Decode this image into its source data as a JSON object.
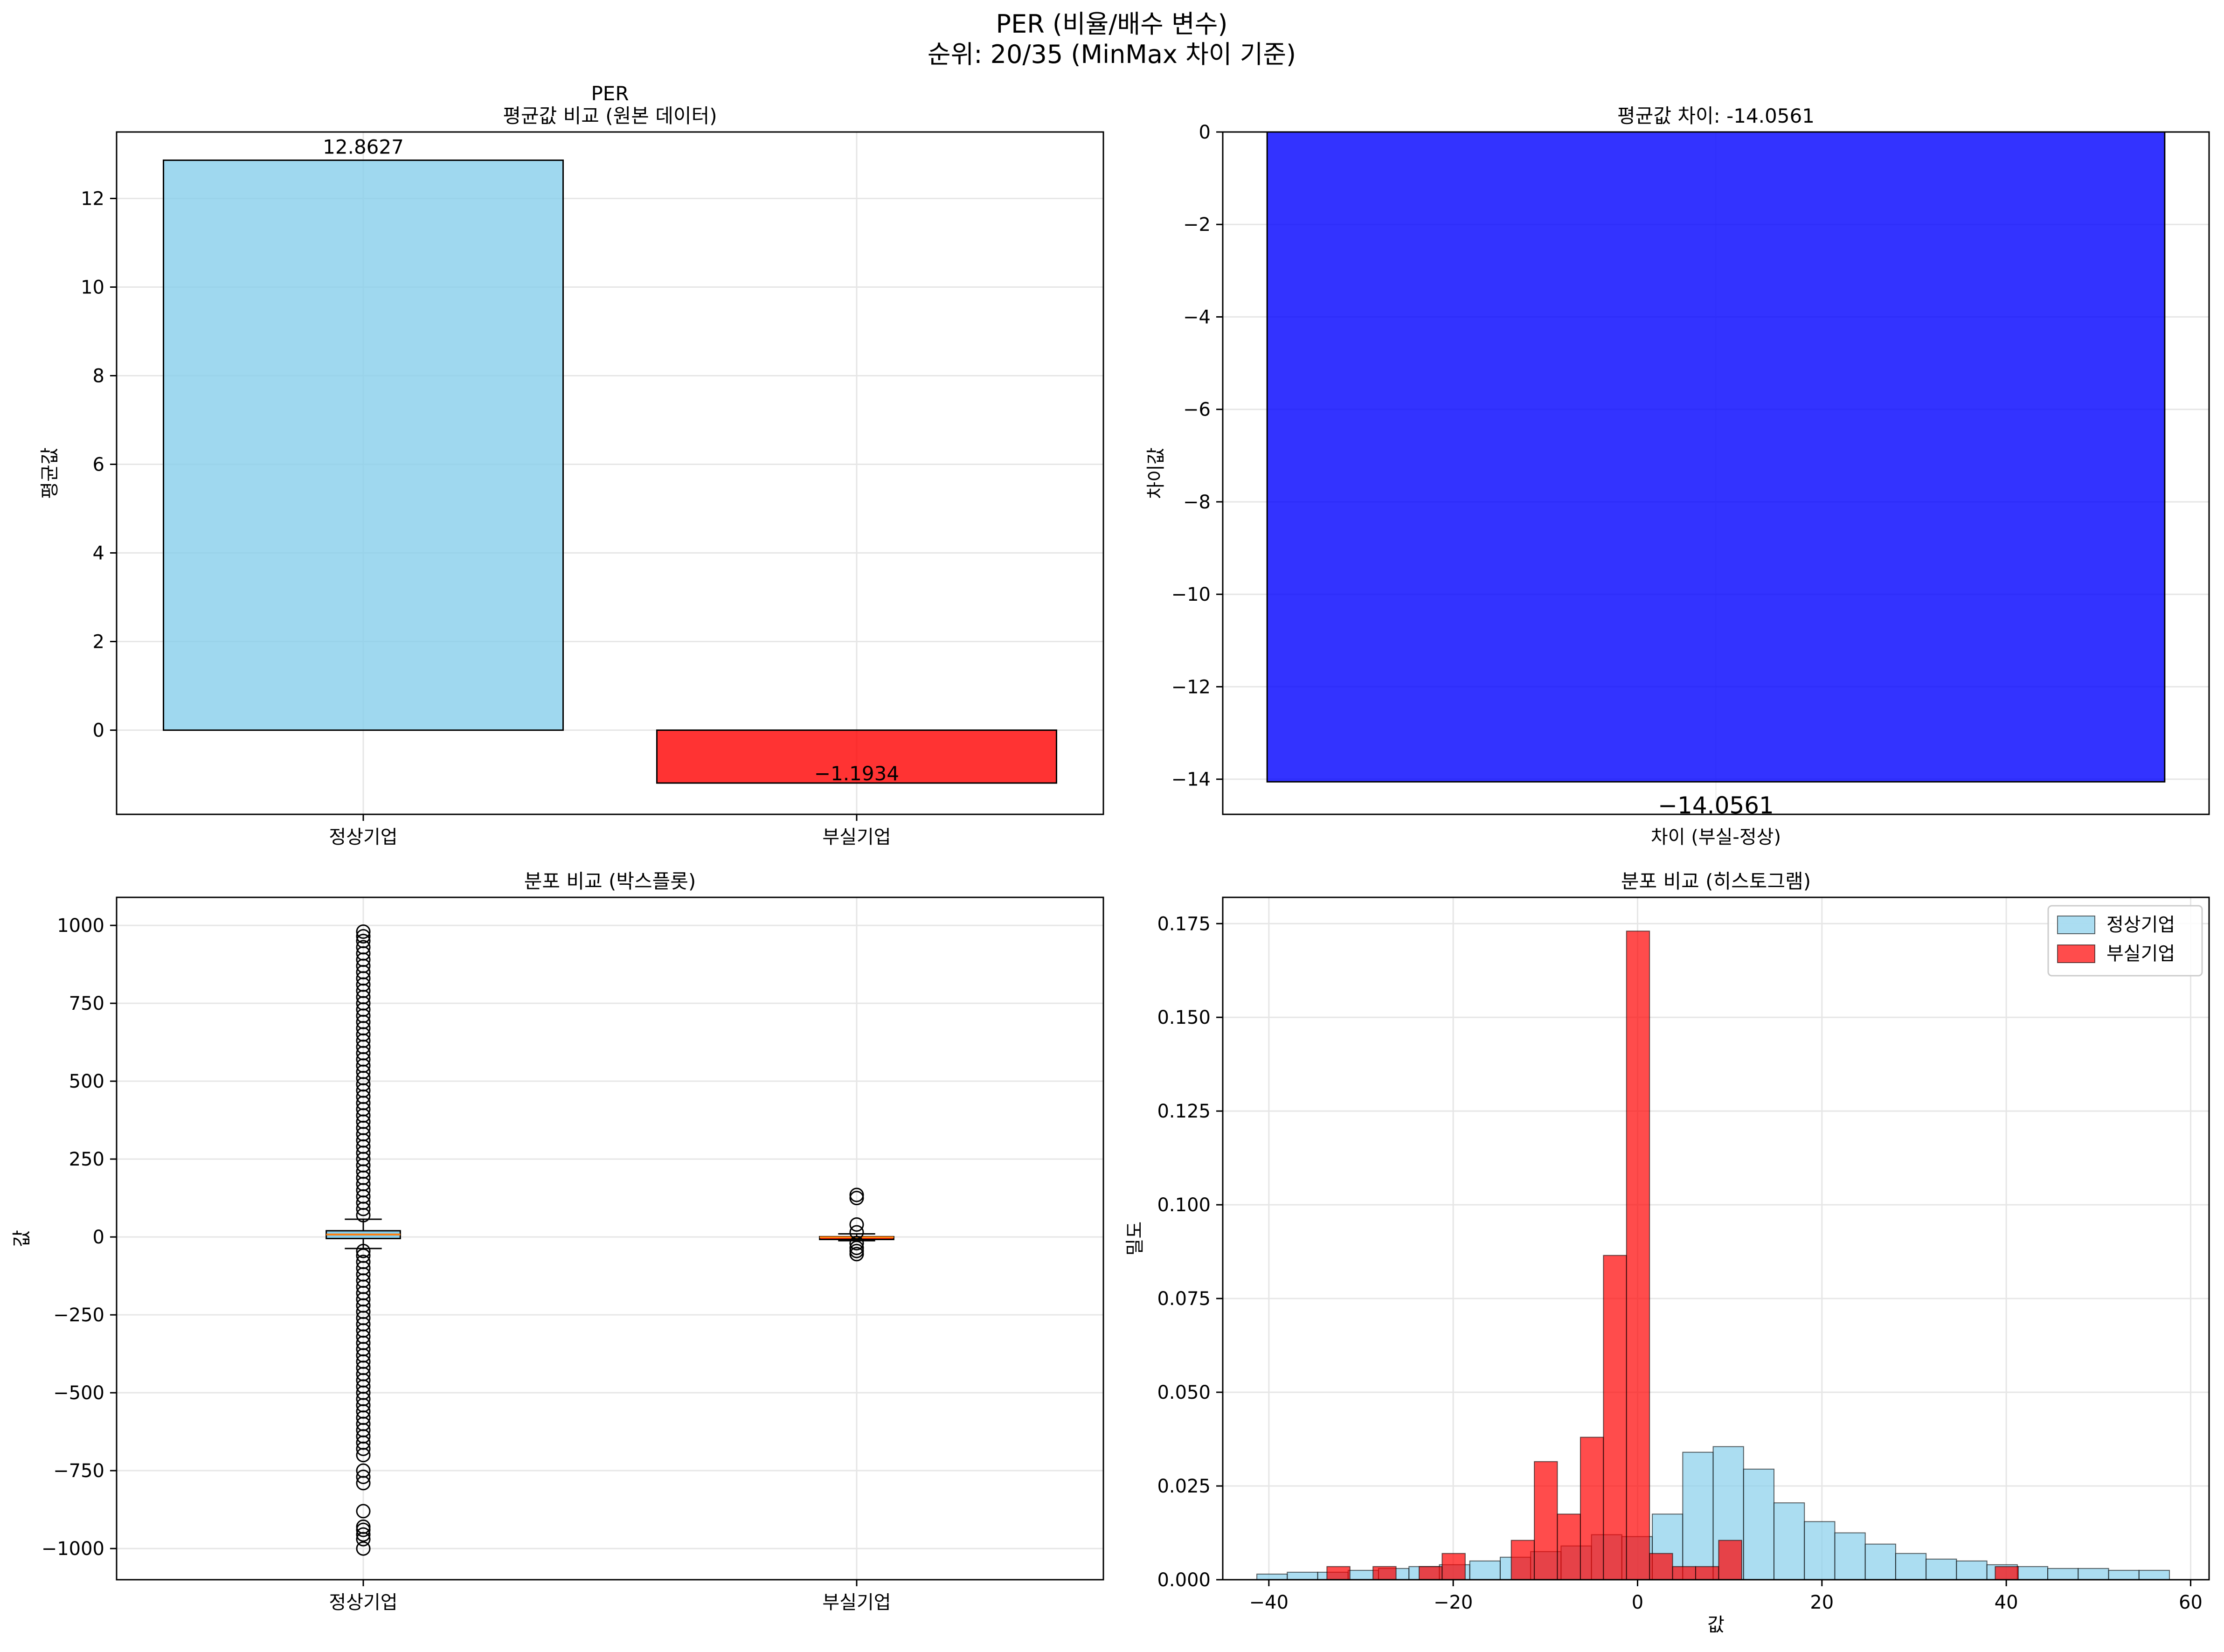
{
  "suptitle": {
    "line1": "PER (비율/배수 변수)",
    "line2": "순위: 20/35 (MinMax 차이 기준)"
  },
  "colors": {
    "normal": "#87CEEB",
    "failed": "#FF0000",
    "diff": "#0000FF",
    "grid": "#e6e6e6",
    "median": "#ff7f0e"
  },
  "chart_data": [
    {
      "type": "bar",
      "title": "PER\n평균값 비교 (원본 데이터)",
      "categories": [
        "정상기업",
        "부실기업"
      ],
      "values": [
        12.8627,
        -1.1934
      ],
      "value_labels": [
        "12.8627",
        "-1.1934"
      ],
      "xlabel": "",
      "ylabel": "평균값",
      "ylim": [
        -1.9,
        13.5
      ],
      "yticks": [
        0,
        2,
        4,
        6,
        8,
        10,
        12
      ],
      "grid": true
    },
    {
      "type": "bar",
      "title": "평균값 차이: -14.0561",
      "categories": [
        ""
      ],
      "values": [
        -14.0561
      ],
      "value_labels": [
        "-14.0561"
      ],
      "xlabel": "차이 (부실-정상)",
      "ylabel": "차이값",
      "ylim": [
        -14.76,
        0
      ],
      "yticks": [
        0,
        -2,
        -4,
        -6,
        -8,
        -10,
        -12,
        -14
      ],
      "grid": true
    },
    {
      "type": "box",
      "title": "분포 비교 (박스플롯)",
      "categories": [
        "정상기업",
        "부실기업"
      ],
      "boxes": [
        {
          "name": "정상기업",
          "q1": -5,
          "median": 8,
          "q3": 20,
          "whislo": -37,
          "whishi": 57,
          "fliers": [
            -1000,
            -970,
            -955,
            -940,
            -930,
            -880,
            -790,
            -770,
            -750,
            -700,
            -680,
            -660,
            -640,
            -620,
            -600,
            -580,
            -560,
            -540,
            -520,
            -500,
            -480,
            -460,
            -440,
            -420,
            -400,
            -380,
            -360,
            -340,
            -320,
            -300,
            -280,
            -260,
            -240,
            -220,
            -200,
            -180,
            -160,
            -140,
            -120,
            -100,
            -80,
            -60,
            -45,
            70,
            90,
            110,
            130,
            150,
            170,
            190,
            210,
            230,
            250,
            270,
            290,
            310,
            330,
            350,
            370,
            390,
            410,
            430,
            450,
            470,
            490,
            510,
            530,
            550,
            570,
            590,
            610,
            630,
            650,
            670,
            690,
            710,
            730,
            750,
            770,
            790,
            810,
            830,
            850,
            870,
            890,
            910,
            930,
            950,
            965,
            980
          ]
        },
        {
          "name": "부실기업",
          "q1": -3,
          "median": -1,
          "q3": 1,
          "whislo": -12,
          "whishi": 10,
          "fliers": [
            -55,
            -45,
            -35,
            -20,
            15,
            40,
            125,
            135
          ]
        }
      ],
      "xlabel": "",
      "ylabel": "값",
      "ylim": [
        -1100,
        1090
      ],
      "yticks": [
        -1000,
        -750,
        -500,
        -250,
        0,
        250,
        500,
        750,
        1000
      ],
      "grid": true
    },
    {
      "type": "histogram",
      "title": "분포 비교 (히스토그램)",
      "xlabel": "값",
      "ylabel": "밀도",
      "xlim": [
        -45,
        62
      ],
      "ylim": [
        0,
        0.182
      ],
      "xticks": [
        -40,
        -20,
        0,
        20,
        40,
        60
      ],
      "yticks": [
        0.0,
        0.025,
        0.05,
        0.075,
        0.1,
        0.125,
        0.15,
        0.175
      ],
      "legend": "top-right",
      "grid": true,
      "series": [
        {
          "name": "정상기업",
          "edges": [
            -41.3,
            -38.0,
            -34.7,
            -31.4,
            -28.1,
            -24.8,
            -21.5,
            -18.2,
            -14.9,
            -11.6,
            -8.3,
            -5.0,
            -1.7,
            1.6,
            4.9,
            8.2,
            11.5,
            14.8,
            18.1,
            21.4,
            24.7,
            28.0,
            31.3,
            34.6,
            37.9,
            41.2,
            44.5,
            47.8,
            51.1,
            54.4,
            57.7
          ],
          "values": [
            0.0015,
            0.002,
            0.002,
            0.0025,
            0.003,
            0.0035,
            0.004,
            0.005,
            0.006,
            0.0075,
            0.009,
            0.012,
            0.0115,
            0.0175,
            0.034,
            0.0355,
            0.0295,
            0.0205,
            0.0155,
            0.0125,
            0.0095,
            0.007,
            0.0055,
            0.005,
            0.004,
            0.0035,
            0.003,
            0.003,
            0.0025,
            0.0025
          ]
        },
        {
          "name": "부실기업",
          "edges": [
            -33.7,
            -31.2,
            -28.7,
            -26.2,
            -23.7,
            -21.2,
            -18.7,
            -16.2,
            -13.7,
            -11.2,
            -8.7,
            -6.2,
            -3.7,
            -1.2,
            1.3,
            3.8,
            6.3,
            8.8,
            11.3,
            13.8,
            16.3,
            18.8,
            21.3,
            23.8,
            26.3,
            28.8,
            31.3,
            33.8,
            36.3,
            38.8,
            41.3
          ],
          "values": [
            0.0035,
            0,
            0.0035,
            0,
            0.0035,
            0.007,
            0,
            0,
            0.0105,
            0.0315,
            0.0175,
            0.038,
            0.0865,
            0.173,
            0.007,
            0.0035,
            0.0035,
            0.0105,
            0,
            0,
            0,
            0,
            0,
            0,
            0,
            0,
            0,
            0,
            0,
            0.0035
          ]
        }
      ]
    }
  ]
}
